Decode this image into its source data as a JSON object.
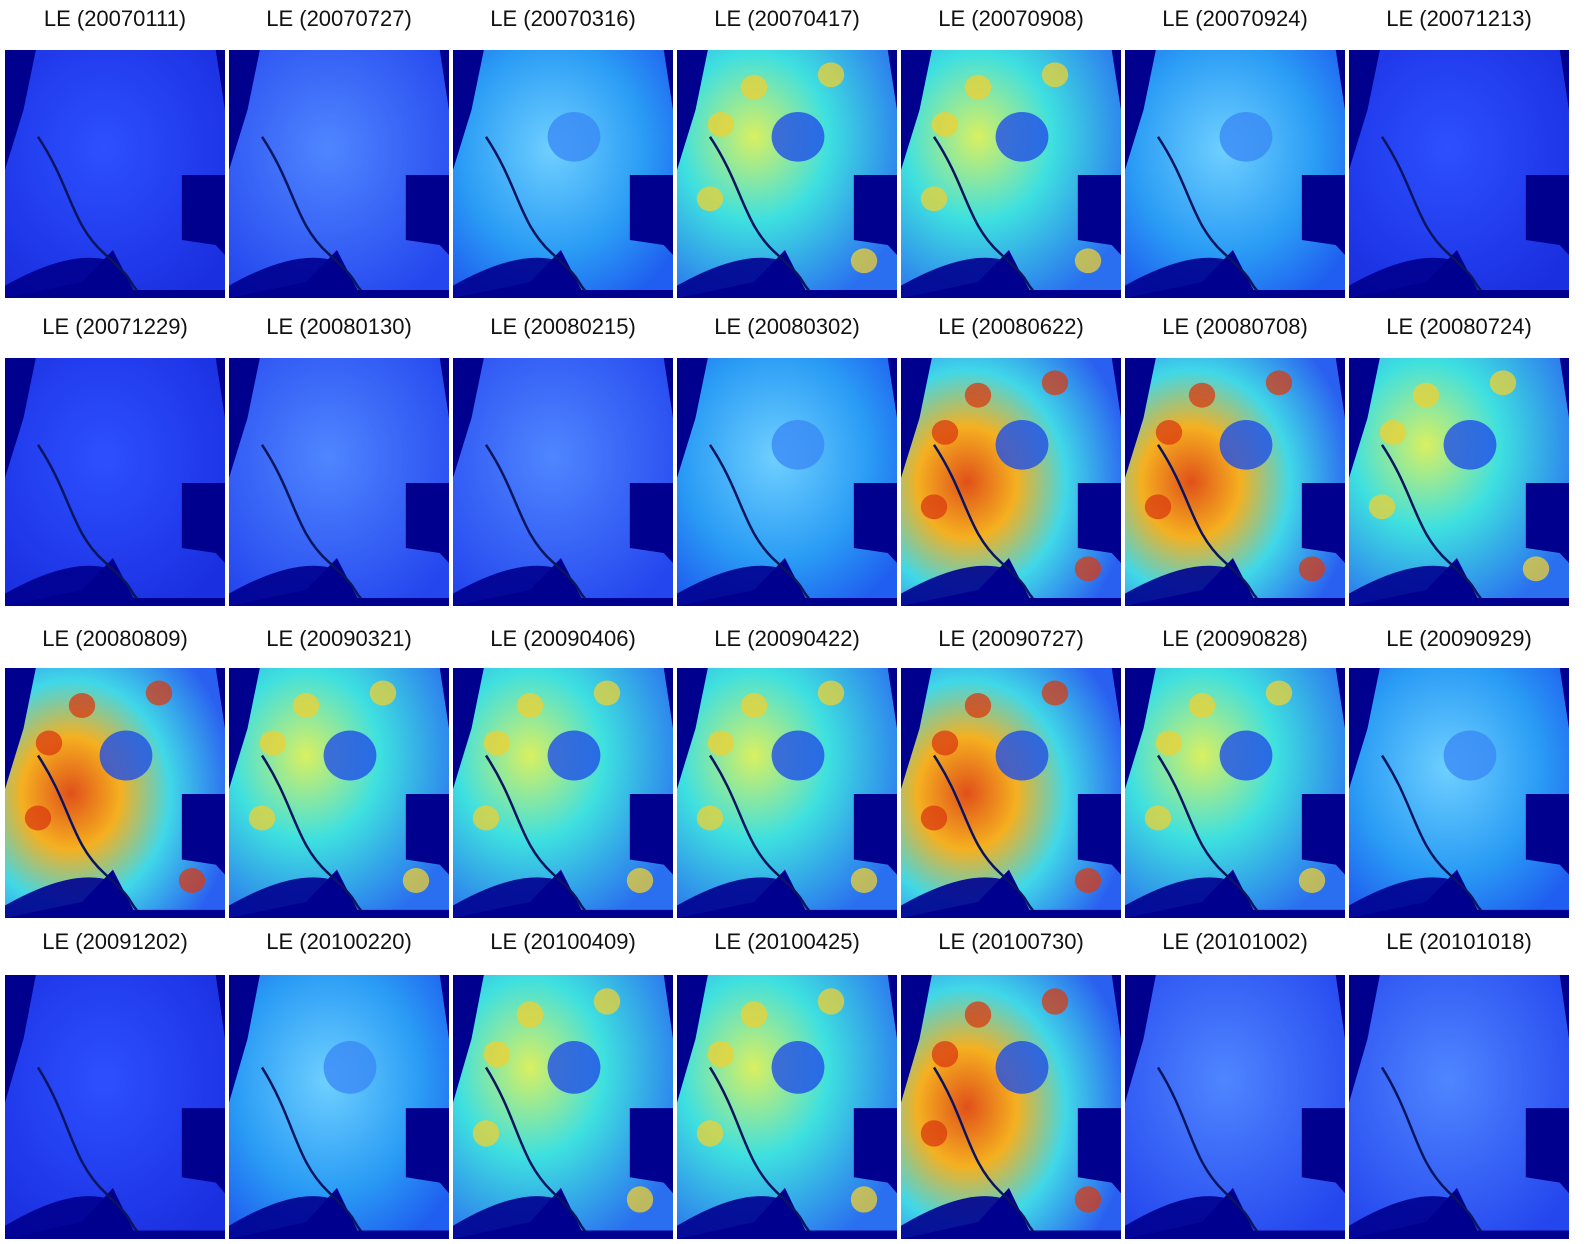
{
  "rows": [
    [
      "LE (20070111)",
      "LE (20070727)",
      "LE (20070316)",
      "LE (20070417)",
      "LE (20070908)",
      "LE (20070924)",
      "LE (20071213)"
    ],
    [
      "LE (20071229)",
      "LE (20080130)",
      "LE (20080215)",
      "LE (20080302)",
      "LE (20080622)",
      "LE (20080708)",
      "LE (20080724)"
    ],
    [
      "LE (20080809)",
      "LE (20090321)",
      "LE (20090406)",
      "LE (20090422)",
      "LE (20090727)",
      "LE (20090828)",
      "LE (20090929)"
    ],
    [
      "LE (20091202)",
      "LE (20100220)",
      "LE (20100409)",
      "LE (20100425)",
      "LE (20100730)",
      "LE (20101002)",
      "LE (20101018)"
    ]
  ]
}
